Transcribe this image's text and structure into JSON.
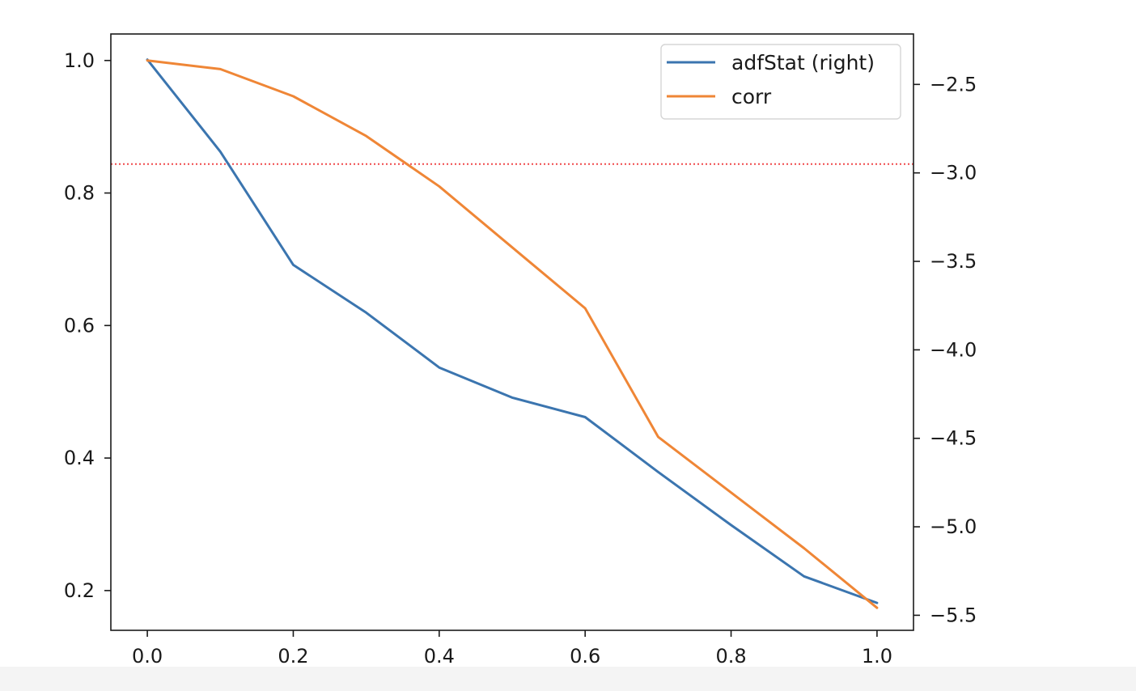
{
  "chart_data": {
    "type": "line",
    "title": "",
    "x": [
      0.0,
      0.1,
      0.2,
      0.3,
      0.4,
      0.5,
      0.6,
      0.7,
      0.8,
      0.9,
      1.0
    ],
    "xlim": [
      -0.05,
      1.05
    ],
    "xticks": [
      "0.0",
      "0.2",
      "0.4",
      "0.6",
      "0.8",
      "1.0"
    ],
    "xtick_values": [
      0.0,
      0.2,
      0.4,
      0.6,
      0.8,
      1.0
    ],
    "left_axis": {
      "ylim": [
        0.14,
        1.04
      ],
      "ticks": [
        "0.2",
        "0.4",
        "0.6",
        "0.8",
        "1.0"
      ],
      "tick_values": [
        0.2,
        0.4,
        0.6,
        0.8,
        1.0
      ]
    },
    "right_axis": {
      "ylim": [
        -5.585,
        -2.215
      ],
      "ticks": [
        "−5.5",
        "−5.0",
        "−4.5",
        "−4.0",
        "−3.5",
        "−3.0",
        "−2.5"
      ],
      "tick_values": [
        -5.5,
        -5.0,
        -4.5,
        -4.0,
        -3.5,
        -3.0,
        -2.5
      ]
    },
    "series": [
      {
        "name": "adfStat (right)",
        "axis": "right",
        "color": "#3b75af",
        "values": [
          -2.36,
          -2.88,
          -3.52,
          -3.79,
          -4.1,
          -4.27,
          -4.38,
          -4.69,
          -4.99,
          -5.28,
          -5.43
        ]
      },
      {
        "name": "corr",
        "axis": "left",
        "color": "#ef8636",
        "values": [
          1.0,
          0.987,
          0.946,
          0.886,
          0.81,
          0.718,
          0.626,
          0.432,
          0.348,
          0.264,
          0.174
        ]
      }
    ],
    "reference_line": {
      "axis": "right",
      "value": -2.95,
      "style": "dotted",
      "color": "#f0484a"
    },
    "legend": {
      "placement": "top-right",
      "entries": [
        "adfStat (right)",
        "corr"
      ]
    },
    "grid": false
  }
}
